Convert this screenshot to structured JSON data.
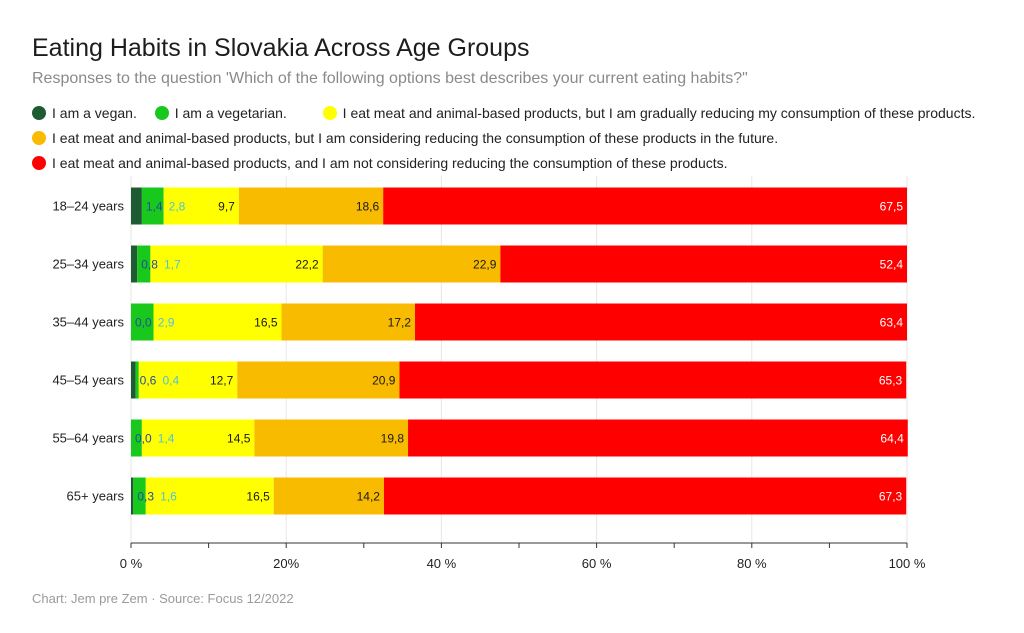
{
  "title": "Eating Habits in Slovakia Across Age Groups",
  "subtitle": "Responses to the question 'Which of the following options best describes your current eating habits?\"",
  "footer": "Chart: Jem pre Zem · Source: Focus 12/2022",
  "colors": {
    "vegan": "#1e5a32",
    "vegetarian": "#19c81d",
    "reducing": "#ffff00",
    "considering": "#f8bb00",
    "not_considering": "#ff0000",
    "label_dark": "#1a1a1a",
    "label_light": "#ffffff",
    "label_blue": "#1f4e9c",
    "label_cyan": "#4fc3d9"
  },
  "chart_data": {
    "type": "bar",
    "orientation": "horizontal",
    "stacked": true,
    "categories": [
      "18–24 years",
      "25–34 years",
      "35–44 years",
      "45–54 years",
      "55–64 years",
      "65+ years"
    ],
    "series": [
      {
        "name": "I am a vegan.",
        "key": "vegan",
        "values": [
          1.4,
          0.8,
          0.0,
          0.6,
          0.0,
          0.3
        ],
        "labels": [
          "1,4",
          "0,8",
          "0,0",
          "0,6",
          "0,0",
          "0,3"
        ]
      },
      {
        "name": "I am a vegetarian.",
        "key": "vegetarian",
        "values": [
          2.8,
          1.7,
          2.9,
          0.4,
          1.4,
          1.6
        ],
        "labels": [
          "2,8",
          "1,7",
          "2,9",
          "0,4",
          "1,4",
          "1,6"
        ]
      },
      {
        "name": "I eat meat and animal-based products, but I am gradually reducing my consumption of these products.",
        "key": "reducing",
        "values": [
          9.7,
          22.2,
          16.5,
          12.7,
          14.5,
          16.5
        ],
        "labels": [
          "9,7",
          "22,2",
          "16,5",
          "12,7",
          "14,5",
          "16,5"
        ]
      },
      {
        "name": "I eat meat and animal-based products, but I am considering reducing the consumption of these products in the future.",
        "key": "considering",
        "values": [
          18.6,
          22.9,
          17.2,
          20.9,
          19.8,
          14.2
        ],
        "labels": [
          "18,6",
          "22,9",
          "17,2",
          "20,9",
          "19,8",
          "14,2"
        ]
      },
      {
        "name": "I eat meat and animal-based products, and I am not considering reducing the consumption of these products.",
        "key": "not_considering",
        "values": [
          67.5,
          52.4,
          63.4,
          65.3,
          64.4,
          67.3
        ],
        "labels": [
          "67,5",
          "52,4",
          "63,4",
          "65,3",
          "64,4",
          "67,3"
        ]
      }
    ],
    "xlim": [
      0,
      100
    ],
    "xticks": [
      0,
      20,
      40,
      60,
      80,
      100
    ],
    "xtick_labels": [
      "0 %",
      "20%",
      "40 %",
      "60 %",
      "80 %",
      "100 %"
    ],
    "xlabel": "",
    "ylabel": "",
    "grid": true,
    "legend_position": "top"
  }
}
